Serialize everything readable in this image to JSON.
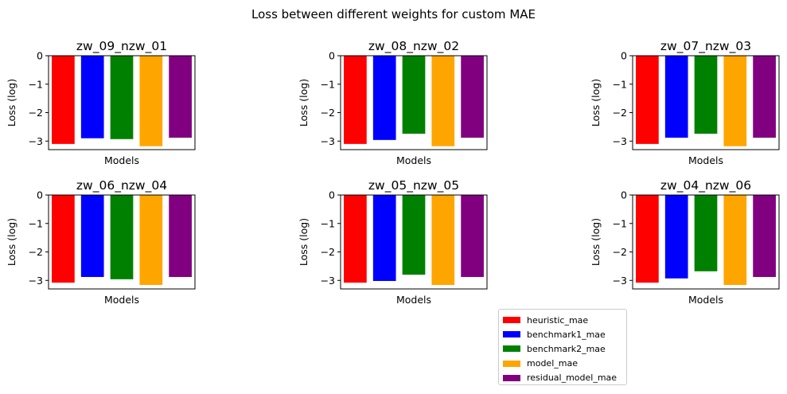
{
  "figure": {
    "title": "Loss between different weights for custom MAE"
  },
  "legend": {
    "position": "lower-center-right",
    "items": [
      {
        "label": "heuristic_mae",
        "color": "#ff0000"
      },
      {
        "label": "benchmark1_mae",
        "color": "#0000ff"
      },
      {
        "label": "benchmark2_mae",
        "color": "#008000"
      },
      {
        "label": "model_mae",
        "color": "#ffa500"
      },
      {
        "label": "residual_model_mae",
        "color": "#800080"
      }
    ]
  },
  "chart_data": [
    {
      "type": "bar",
      "title": "zw_09_nzw_01",
      "xlabel": "Models",
      "ylabel": "Loss (log)",
      "categories": [
        "heuristic_mae",
        "benchmark1_mae",
        "benchmark2_mae",
        "model_mae",
        "residual_model_mae"
      ],
      "values": [
        -3.1,
        -2.9,
        -2.93,
        -3.18,
        -2.88
      ],
      "ylim": [
        -3.3,
        0
      ],
      "yticks": [
        0,
        -1,
        -2,
        -3
      ],
      "grid": false
    },
    {
      "type": "bar",
      "title": "zw_08_nzw_02",
      "xlabel": "Models",
      "ylabel": "Loss (log)",
      "categories": [
        "heuristic_mae",
        "benchmark1_mae",
        "benchmark2_mae",
        "model_mae",
        "residual_model_mae"
      ],
      "values": [
        -3.1,
        -2.96,
        -2.74,
        -3.18,
        -2.88
      ],
      "ylim": [
        -3.3,
        0
      ],
      "yticks": [
        0,
        -1,
        -2,
        -3
      ],
      "grid": false
    },
    {
      "type": "bar",
      "title": "zw_07_nzw_03",
      "xlabel": "Models",
      "ylabel": "Loss (log)",
      "categories": [
        "heuristic_mae",
        "benchmark1_mae",
        "benchmark2_mae",
        "model_mae",
        "residual_model_mae"
      ],
      "values": [
        -3.1,
        -2.88,
        -2.74,
        -3.18,
        -2.88
      ],
      "ylim": [
        -3.3,
        0
      ],
      "yticks": [
        0,
        -1,
        -2,
        -3
      ],
      "grid": false
    },
    {
      "type": "bar",
      "title": "zw_06_nzw_04",
      "xlabel": "Models",
      "ylabel": "Loss (log)",
      "categories": [
        "heuristic_mae",
        "benchmark1_mae",
        "benchmark2_mae",
        "model_mae",
        "residual_model_mae"
      ],
      "values": [
        -3.08,
        -2.88,
        -2.96,
        -3.16,
        -2.88
      ],
      "ylim": [
        -3.3,
        0
      ],
      "yticks": [
        0,
        -1,
        -2,
        -3
      ],
      "grid": false
    },
    {
      "type": "bar",
      "title": "zw_05_nzw_05",
      "xlabel": "Models",
      "ylabel": "Loss (log)",
      "categories": [
        "heuristic_mae",
        "benchmark1_mae",
        "benchmark2_mae",
        "model_mae",
        "residual_model_mae"
      ],
      "values": [
        -3.08,
        -3.02,
        -2.8,
        -3.16,
        -2.88
      ],
      "ylim": [
        -3.3,
        0
      ],
      "yticks": [
        0,
        -1,
        -2,
        -3
      ],
      "grid": false
    },
    {
      "type": "bar",
      "title": "zw_04_nzw_06",
      "xlabel": "Models",
      "ylabel": "Loss (log)",
      "categories": [
        "heuristic_mae",
        "benchmark1_mae",
        "benchmark2_mae",
        "model_mae",
        "residual_model_mae"
      ],
      "values": [
        -3.08,
        -2.93,
        -2.68,
        -3.16,
        -2.88
      ],
      "ylim": [
        -3.3,
        0
      ],
      "yticks": [
        0,
        -1,
        -2,
        -3
      ],
      "grid": false
    }
  ]
}
